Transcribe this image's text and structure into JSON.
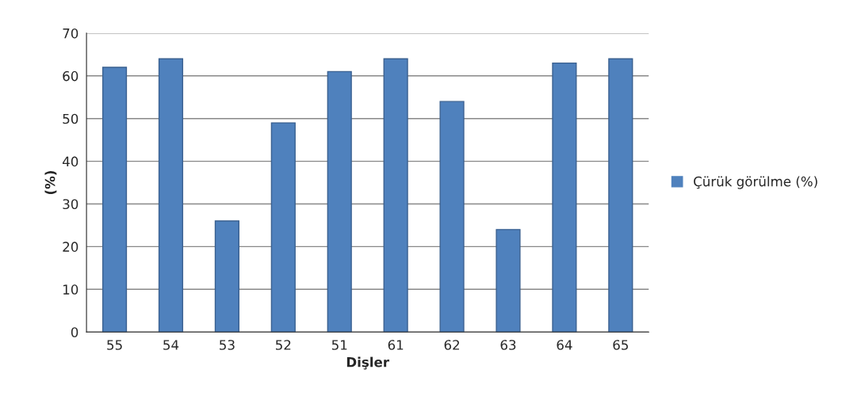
{
  "chart_data": {
    "type": "bar",
    "xlabel": "Dişler",
    "ylabel": "(%)",
    "categories": [
      "55",
      "54",
      "53",
      "52",
      "51",
      "61",
      "62",
      "63",
      "64",
      "65"
    ],
    "series": [
      {
        "name": "Çürük görülme (%)",
        "color": "#4f81bd",
        "values": [
          62,
          64,
          26,
          49,
          61,
          64,
          54,
          24,
          63,
          64
        ]
      }
    ],
    "ylim": [
      0,
      70
    ],
    "yticks": [
      0,
      10,
      20,
      30,
      40,
      50,
      60,
      70
    ],
    "grid": "y",
    "legend": "right"
  }
}
